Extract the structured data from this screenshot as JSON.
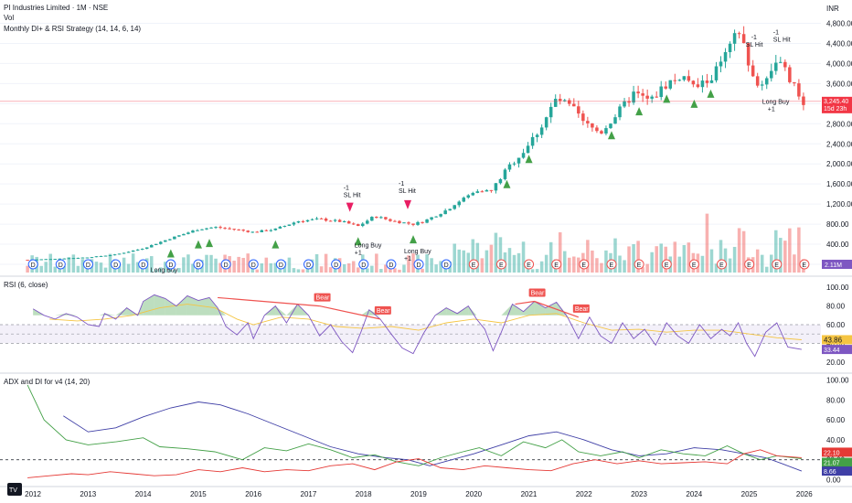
{
  "header": {
    "symbol": "PI Industries Limited · 1M · NSE",
    "vol": "Vol",
    "strategy": "Monthly DI+ & RSI Strategy (14, 14, 6, 14)",
    "currency": "INR"
  },
  "colors": {
    "up": "#26a69a",
    "down": "#ef5350",
    "rsi": "#7e57c2",
    "rsi_ma": "#f5c542",
    "adx": "#3f3fa6",
    "di_plus": "#43a047",
    "di_minus": "#e53935",
    "buy": "#43a047",
    "sl": "#e91e63",
    "current": "#f23645"
  },
  "chart_data": [
    {
      "type": "candlestick",
      "ylim": [
        -200,
        4900
      ],
      "yticks": [
        "4,800.00",
        "4,400.00",
        "4,000.00",
        "3,600.00",
        "3,200.00",
        "2,800.00",
        "2,400.00",
        "2,000.00",
        "1,600.00",
        "1,200.00",
        "800.00",
        "400.00",
        "0.00"
      ],
      "ytick_values": [
        4800,
        4400,
        4000,
        3600,
        3200,
        2800,
        2400,
        2000,
        1600,
        1200,
        800,
        400,
        0
      ],
      "xlim": [
        2011.4,
        2026.3
      ],
      "xticks": [
        "2012",
        "2013",
        "2014",
        "2015",
        "2016",
        "2017",
        "2018",
        "2019",
        "2020",
        "2021",
        "2022",
        "2023",
        "2024",
        "2025",
        "2026"
      ],
      "xtick_values": [
        2012,
        2013,
        2014,
        2015,
        2016,
        2017,
        2018,
        2019,
        2020,
        2021,
        2022,
        2023,
        2024,
        2025,
        2026
      ],
      "anchors": [
        [
          2011.9,
          90
        ],
        [
          2012.5,
          115
        ],
        [
          2013.0,
          140
        ],
        [
          2013.5,
          195
        ],
        [
          2014.0,
          320
        ],
        [
          2014.5,
          520
        ],
        [
          2015.0,
          700
        ],
        [
          2015.3,
          740
        ],
        [
          2015.7,
          690
        ],
        [
          2016.0,
          640
        ],
        [
          2016.4,
          700
        ],
        [
          2016.8,
          860
        ],
        [
          2017.2,
          900
        ],
        [
          2017.6,
          850
        ],
        [
          2017.9,
          760
        ],
        [
          2018.2,
          960
        ],
        [
          2018.5,
          870
        ],
        [
          2018.9,
          800
        ],
        [
          2019.1,
          860
        ],
        [
          2019.5,
          1080
        ],
        [
          2019.8,
          1300
        ],
        [
          2020.1,
          1500
        ],
        [
          2020.3,
          1440
        ],
        [
          2020.6,
          1900
        ],
        [
          2020.9,
          2250
        ],
        [
          2021.2,
          2700
        ],
        [
          2021.5,
          3300
        ],
        [
          2021.8,
          3100
        ],
        [
          2022.0,
          2800
        ],
        [
          2022.3,
          2620
        ],
        [
          2022.6,
          3000
        ],
        [
          2022.9,
          3400
        ],
        [
          2023.2,
          3250
        ],
        [
          2023.5,
          3600
        ],
        [
          2023.8,
          3750
        ],
        [
          2024.0,
          3500
        ],
        [
          2024.3,
          3700
        ],
        [
          2024.6,
          4200
        ],
        [
          2024.8,
          4650
        ],
        [
          2024.95,
          4200
        ],
        [
          2025.1,
          3500
        ],
        [
          2025.3,
          3700
        ],
        [
          2025.5,
          4100
        ],
        [
          2025.7,
          3750
        ],
        [
          2025.95,
          3245.4
        ]
      ],
      "volume_scale": [
        0,
        1
      ]
    },
    {
      "type": "line",
      "title": "RSI (6, close)",
      "ylim": [
        10,
        110
      ],
      "yticks": [
        "100.00",
        "80.00",
        "60.00",
        "40.00",
        "20.00"
      ],
      "ytick_values": [
        100,
        80,
        60,
        40,
        20
      ],
      "band": [
        40,
        60
      ],
      "series": [
        {
          "values": [
            [
              2012.0,
              77
            ],
            [
              2012.2,
              70
            ],
            [
              2012.4,
              66
            ],
            [
              2012.6,
              72
            ],
            [
              2012.8,
              68
            ],
            [
              2013.0,
              60
            ],
            [
              2013.2,
              58
            ],
            [
              2013.3,
              72
            ],
            [
              2013.5,
              66
            ],
            [
              2013.7,
              78
            ],
            [
              2013.9,
              70
            ],
            [
              2014.0,
              85
            ],
            [
              2014.2,
              92
            ],
            [
              2014.4,
              88
            ],
            [
              2014.6,
              80
            ],
            [
              2014.8,
              91
            ],
            [
              2015.0,
              86
            ],
            [
              2015.2,
              89
            ],
            [
              2015.35,
              78
            ],
            [
              2015.5,
              58
            ],
            [
              2015.7,
              49
            ],
            [
              2015.9,
              62
            ],
            [
              2016.0,
              45
            ],
            [
              2016.2,
              70
            ],
            [
              2016.4,
              80
            ],
            [
              2016.6,
              62
            ],
            [
              2016.8,
              82
            ],
            [
              2017.0,
              70
            ],
            [
              2017.2,
              48
            ],
            [
              2017.4,
              60
            ],
            [
              2017.6,
              42
            ],
            [
              2017.8,
              30
            ],
            [
              2017.95,
              52
            ],
            [
              2018.1,
              76
            ],
            [
              2018.3,
              66
            ],
            [
              2018.5,
              50
            ],
            [
              2018.7,
              35
            ],
            [
              2018.9,
              29
            ],
            [
              2019.1,
              52
            ],
            [
              2019.3,
              70
            ],
            [
              2019.5,
              78
            ],
            [
              2019.7,
              72
            ],
            [
              2019.9,
              80
            ],
            [
              2020.05,
              66
            ],
            [
              2020.2,
              55
            ],
            [
              2020.35,
              32
            ],
            [
              2020.5,
              52
            ],
            [
              2020.7,
              82
            ],
            [
              2020.9,
              74
            ],
            [
              2021.1,
              85
            ],
            [
              2021.3,
              78
            ],
            [
              2021.5,
              84
            ],
            [
              2021.7,
              68
            ],
            [
              2021.9,
              45
            ],
            [
              2022.1,
              68
            ],
            [
              2022.3,
              48
            ],
            [
              2022.5,
              40
            ],
            [
              2022.7,
              62
            ],
            [
              2022.9,
              45
            ],
            [
              2023.1,
              55
            ],
            [
              2023.3,
              38
            ],
            [
              2023.5,
              62
            ],
            [
              2023.7,
              48
            ],
            [
              2023.9,
              40
            ],
            [
              2024.1,
              60
            ],
            [
              2024.3,
              45
            ],
            [
              2024.5,
              55
            ],
            [
              2024.65,
              48
            ],
            [
              2024.8,
              62
            ],
            [
              2024.95,
              40
            ],
            [
              2025.1,
              26
            ],
            [
              2025.3,
              52
            ],
            [
              2025.5,
              62
            ],
            [
              2025.7,
              36
            ],
            [
              2025.95,
              33.44
            ]
          ]
        },
        {
          "values": [
            [
              2012.3,
              66
            ],
            [
              2012.8,
              64
            ],
            [
              2013.3,
              66
            ],
            [
              2013.8,
              70
            ],
            [
              2014.3,
              78
            ],
            [
              2014.8,
              82
            ],
            [
              2015.3,
              78
            ],
            [
              2015.7,
              66
            ],
            [
              2016.0,
              60
            ],
            [
              2016.5,
              68
            ],
            [
              2017.0,
              66
            ],
            [
              2017.5,
              58
            ],
            [
              2018.0,
              56
            ],
            [
              2018.5,
              58
            ],
            [
              2019.0,
              54
            ],
            [
              2019.5,
              62
            ],
            [
              2020.0,
              66
            ],
            [
              2020.5,
              62
            ],
            [
              2021.0,
              70
            ],
            [
              2021.5,
              72
            ],
            [
              2022.0,
              62
            ],
            [
              2022.5,
              54
            ],
            [
              2023.0,
              55
            ],
            [
              2023.5,
              52
            ],
            [
              2024.0,
              54
            ],
            [
              2024.5,
              54
            ],
            [
              2025.0,
              50
            ],
            [
              2025.5,
              46
            ],
            [
              2025.95,
              43.86
            ]
          ]
        }
      ],
      "last_values": [
        "43.86",
        "33.44"
      ],
      "signals": [
        "Bear",
        "Bear",
        "Bear",
        "Bear"
      ]
    },
    {
      "type": "line",
      "title": "ADX and DI for v4 (14, 20)",
      "ylim": [
        -5,
        105
      ],
      "yticks": [
        "100.00",
        "80.00",
        "60.00",
        "40.00",
        "20.00",
        "0.00"
      ],
      "ytick_values": [
        100,
        80,
        60,
        40,
        20,
        0
      ],
      "threshold": 20,
      "series": [
        {
          "values": [
            [
              2012.55,
              64
            ],
            [
              2013.0,
              48
            ],
            [
              2013.5,
              52
            ],
            [
              2014.0,
              63
            ],
            [
              2014.5,
              72
            ],
            [
              2015.0,
              78
            ],
            [
              2015.4,
              75
            ],
            [
              2015.9,
              66
            ],
            [
              2016.4,
              55
            ],
            [
              2016.9,
              44
            ],
            [
              2017.4,
              33
            ],
            [
              2017.9,
              26
            ],
            [
              2018.4,
              22
            ],
            [
              2018.8,
              20
            ],
            [
              2019.2,
              14
            ],
            [
              2019.6,
              20
            ],
            [
              2020.0,
              26
            ],
            [
              2020.5,
              35
            ],
            [
              2021.0,
              44
            ],
            [
              2021.5,
              48
            ],
            [
              2022.0,
              40
            ],
            [
              2022.5,
              30
            ],
            [
              2023.0,
              24
            ],
            [
              2023.5,
              26
            ],
            [
              2024.0,
              32
            ],
            [
              2024.5,
              30
            ],
            [
              2024.9,
              26
            ],
            [
              2025.3,
              22
            ],
            [
              2025.6,
              16
            ],
            [
              2025.95,
              8.66
            ]
          ]
        },
        {
          "values": [
            [
              2011.9,
              95
            ],
            [
              2012.2,
              60
            ],
            [
              2012.6,
              40
            ],
            [
              2013.0,
              35
            ],
            [
              2013.5,
              38
            ],
            [
              2014.0,
              42
            ],
            [
              2014.3,
              33
            ],
            [
              2014.8,
              31
            ],
            [
              2015.3,
              28
            ],
            [
              2015.8,
              20
            ],
            [
              2016.2,
              32
            ],
            [
              2016.6,
              29
            ],
            [
              2017.0,
              36
            ],
            [
              2017.4,
              30
            ],
            [
              2017.8,
              22
            ],
            [
              2018.2,
              25
            ],
            [
              2018.6,
              18
            ],
            [
              2019.0,
              14
            ],
            [
              2019.4,
              22
            ],
            [
              2019.8,
              28
            ],
            [
              2020.1,
              32
            ],
            [
              2020.5,
              24
            ],
            [
              2020.9,
              38
            ],
            [
              2021.3,
              32
            ],
            [
              2021.6,
              40
            ],
            [
              2021.9,
              28
            ],
            [
              2022.3,
              24
            ],
            [
              2022.7,
              28
            ],
            [
              2023.0,
              22
            ],
            [
              2023.4,
              30
            ],
            [
              2023.8,
              26
            ],
            [
              2024.2,
              24
            ],
            [
              2024.6,
              34
            ],
            [
              2024.9,
              26
            ],
            [
              2025.2,
              20
            ],
            [
              2025.5,
              24
            ],
            [
              2025.95,
              21.07
            ]
          ]
        },
        {
          "values": [
            [
              2011.9,
              2
            ],
            [
              2012.3,
              4
            ],
            [
              2012.7,
              6
            ],
            [
              2013.0,
              5
            ],
            [
              2013.4,
              8
            ],
            [
              2013.8,
              6
            ],
            [
              2014.2,
              4
            ],
            [
              2014.6,
              5
            ],
            [
              2015.0,
              10
            ],
            [
              2015.4,
              8
            ],
            [
              2015.8,
              12
            ],
            [
              2016.2,
              8
            ],
            [
              2016.6,
              10
            ],
            [
              2017.0,
              9
            ],
            [
              2017.4,
              14
            ],
            [
              2017.8,
              16
            ],
            [
              2018.2,
              10
            ],
            [
              2018.6,
              18
            ],
            [
              2019.0,
              21
            ],
            [
              2019.4,
              12
            ],
            [
              2019.8,
              10
            ],
            [
              2020.2,
              14
            ],
            [
              2020.6,
              12
            ],
            [
              2021.0,
              10
            ],
            [
              2021.4,
              9
            ],
            [
              2021.8,
              16
            ],
            [
              2022.2,
              20
            ],
            [
              2022.6,
              16
            ],
            [
              2023.0,
              19
            ],
            [
              2023.4,
              16
            ],
            [
              2023.8,
              17
            ],
            [
              2024.2,
              18
            ],
            [
              2024.6,
              16
            ],
            [
              2024.9,
              26
            ],
            [
              2025.2,
              30
            ],
            [
              2025.5,
              24
            ],
            [
              2025.95,
              22.1
            ]
          ]
        }
      ],
      "last_values": [
        "22.10",
        "21.07",
        "8.66"
      ]
    }
  ],
  "price_labels": {
    "last": "3,245.40",
    "countdown": "15d 23h"
  },
  "volume_labels": {
    "last": "2.11M"
  },
  "annotations": {
    "long_buy": "Long Buy",
    "plus_one": "+1",
    "minus_one": "-1",
    "sl_hit": "SL Hit",
    "d": "D",
    "e": "E"
  },
  "watermark": "TV"
}
